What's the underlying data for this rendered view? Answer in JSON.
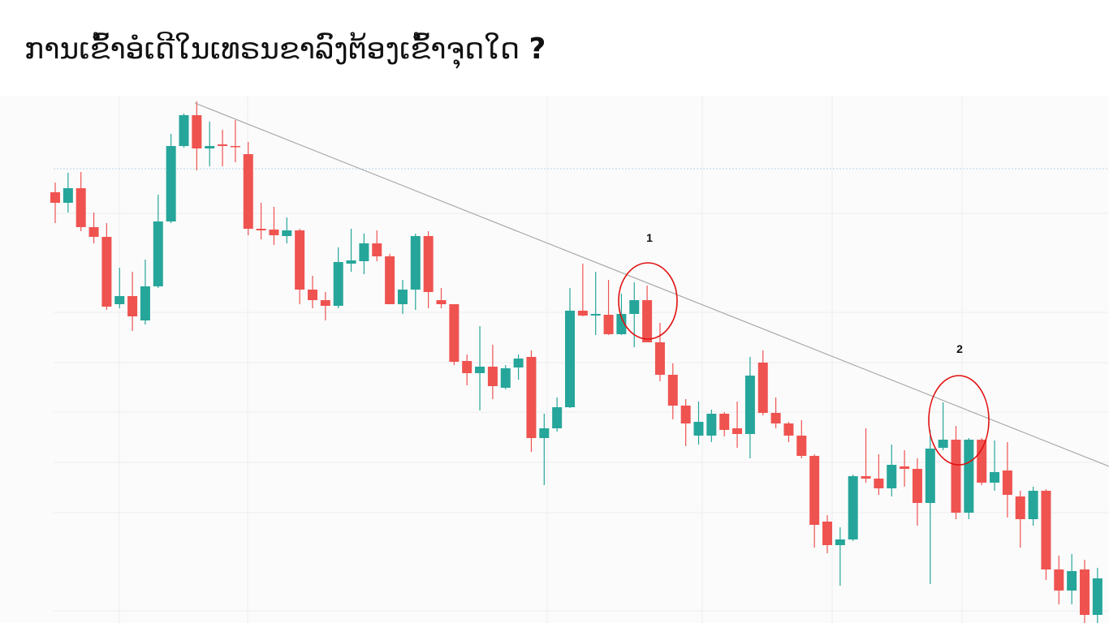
{
  "chart_data": {
    "type": "candlestick",
    "title": "ການເຂົ້າອໍເດີໃນເທຣນຂາລົງຕ້ອງເຂົ້າຈຸດໃດ",
    "title_mark": "?",
    "annotations": [
      "1",
      "2"
    ],
    "up_color": "#26a69a",
    "down_color": "#ef5350",
    "trend_color": "#aaaaaa",
    "circle_color": "#e01010",
    "ylim": [
      0,
      650
    ],
    "open": [
      531,
      518,
      536,
      488,
      476,
      393,
      403,
      373,
      415,
      495,
      588,
      626,
      585,
      590,
      588,
      578,
      486,
      485,
      477,
      484,
      411,
      398,
      391,
      443,
      446,
      468,
      452,
      393,
      411,
      477,
      398,
      393,
      323,
      308,
      316,
      290,
      315,
      328,
      228,
      240,
      266,
      385,
      379,
      380,
      356,
      381,
      398,
      346,
      306,
      268,
      231,
      231,
      258,
      240,
      233,
      321,
      259,
      246,
      231,
      206,
      125,
      96,
      103,
      181,
      178,
      166,
      193,
      190,
      148,
      216,
      226,
      136,
      226,
      173,
      188,
      156,
      128,
      163,
      66,
      40,
      66,
      10
    ],
    "high": [
      543,
      555,
      556,
      506,
      493,
      438,
      433,
      448,
      528,
      603,
      628,
      643,
      618,
      608,
      620,
      593,
      518,
      513,
      500,
      486,
      428,
      408,
      463,
      486,
      480,
      484,
      455,
      423,
      480,
      483,
      413,
      393,
      331,
      366,
      343,
      318,
      331,
      336,
      258,
      278,
      413,
      443,
      433,
      423,
      406,
      420,
      416,
      370,
      320,
      276,
      273,
      263,
      260,
      273,
      328,
      336,
      278,
      248,
      250,
      208,
      133,
      118,
      183,
      240,
      208,
      220,
      213,
      203,
      238,
      272,
      243,
      228,
      228,
      225,
      223,
      163,
      168,
      165,
      83,
      85,
      78,
      68
    ],
    "low": [
      493,
      506,
      483,
      468,
      386,
      388,
      360,
      368,
      413,
      493,
      586,
      558,
      563,
      563,
      568,
      478,
      473,
      466,
      468,
      393,
      388,
      373,
      388,
      433,
      430,
      446,
      393,
      381,
      386,
      388,
      388,
      318,
      293,
      262,
      276,
      288,
      300,
      211,
      170,
      236,
      265,
      378,
      355,
      355,
      355,
      340,
      346,
      298,
      251,
      218,
      220,
      223,
      230,
      216,
      203,
      256,
      240,
      223,
      203,
      93,
      86,
      46,
      101,
      173,
      158,
      156,
      168,
      120,
      48,
      213,
      128,
      128,
      170,
      163,
      130,
      93,
      120,
      53,
      23,
      23,
      0,
      0
    ],
    "close": [
      518,
      536,
      488,
      476,
      390,
      403,
      378,
      415,
      495,
      588,
      626,
      585,
      588,
      588,
      587,
      486,
      484,
      478,
      484,
      411,
      398,
      391,
      445,
      447,
      468,
      452,
      393,
      411,
      477,
      408,
      393,
      322,
      308,
      316,
      292,
      314,
      326,
      228,
      240,
      266,
      385,
      379,
      381,
      356,
      381,
      398,
      346,
      306,
      268,
      246,
      248,
      258,
      238,
      233,
      305,
      259,
      246,
      231,
      206,
      121,
      96,
      103,
      181,
      178,
      166,
      195,
      190,
      148,
      215,
      226,
      136,
      226,
      173,
      186,
      158,
      128,
      163,
      66,
      40,
      64,
      10,
      55
    ],
    "trendline": {
      "x": [
        10.85,
        81.9
      ],
      "y": [
        641,
        193
      ]
    }
  }
}
